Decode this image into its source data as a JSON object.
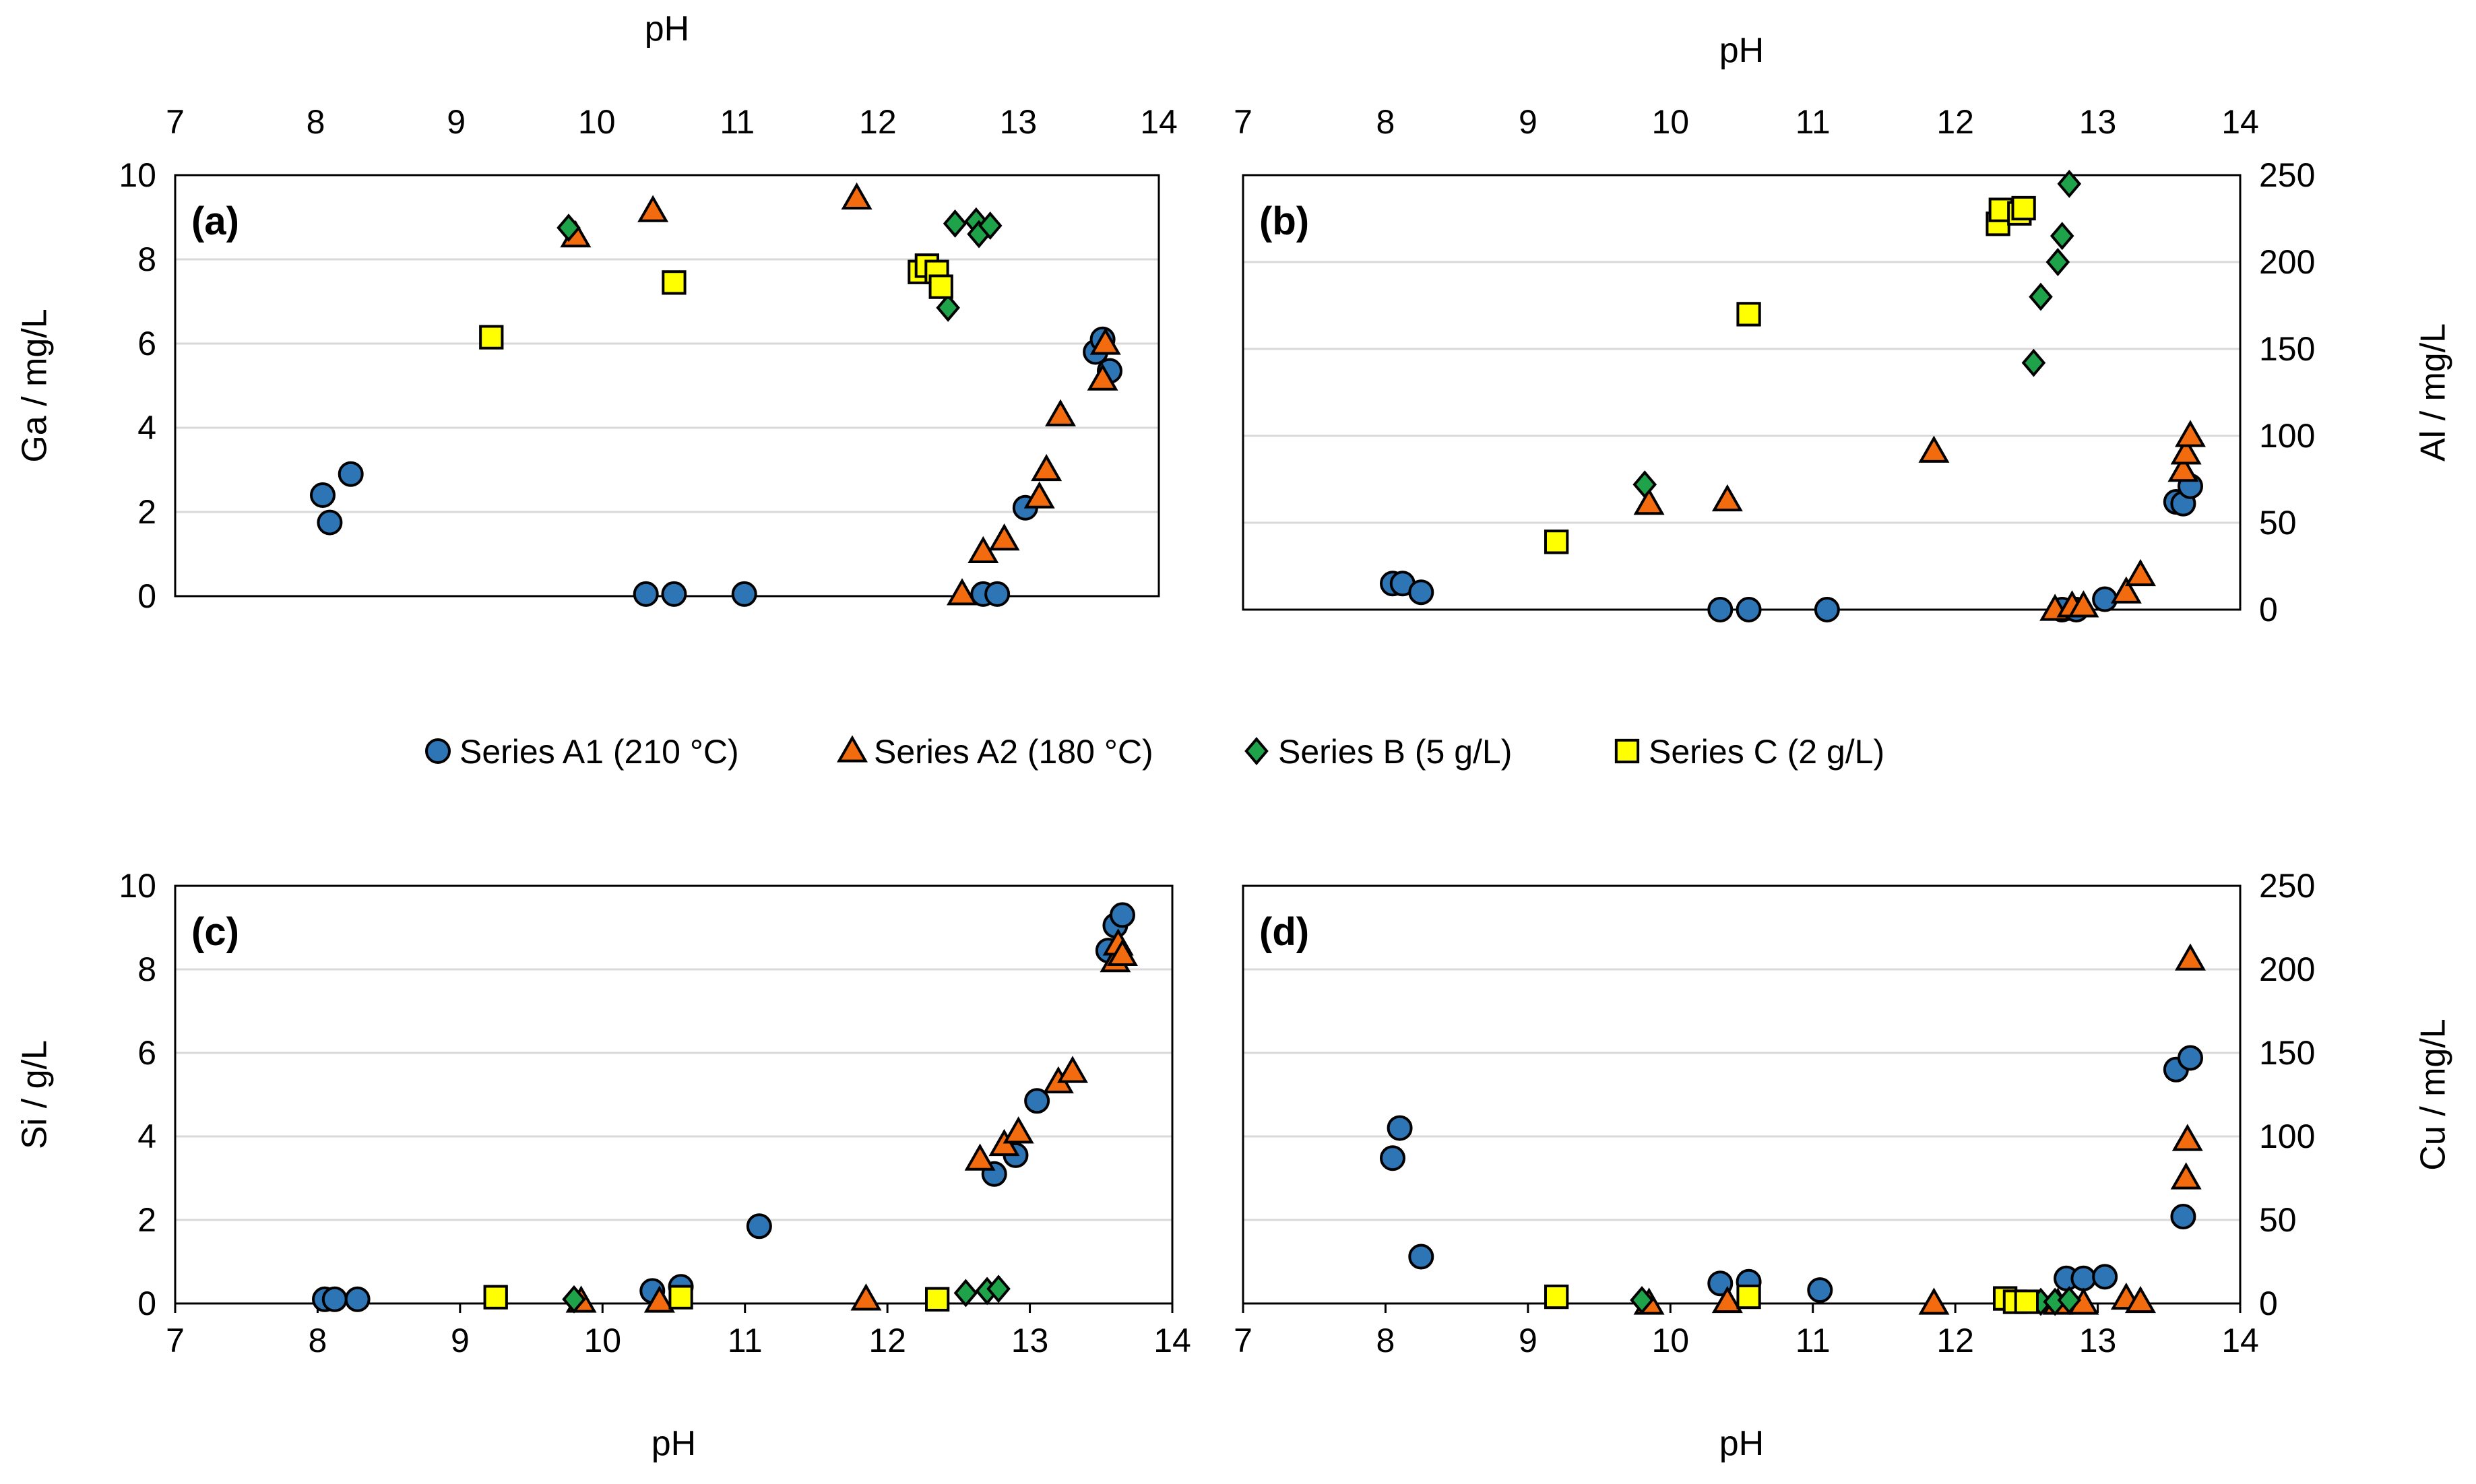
{
  "colors": {
    "A1": "#2e75b6",
    "A2": "#f26b0f",
    "B": "#1fa34a",
    "C": "#ffff00",
    "marker_edge": "#000000",
    "grid": "#d9d9d9"
  },
  "legend": [
    {
      "key": "A1",
      "label": "Series A1 (210 °C)",
      "marker": "circle"
    },
    {
      "key": "A2",
      "label": "Series A2 (180 °C)",
      "marker": "triangle"
    },
    {
      "key": "B",
      "label": "Series B (5 g/L)",
      "marker": "diamond"
    },
    {
      "key": "C",
      "label": "Series C (2 g/L)",
      "marker": "square"
    }
  ],
  "chart_data": [
    {
      "id": "a",
      "type": "scatter",
      "panel_label": "(a)",
      "xlabel": "pH",
      "ylabel": "Ga / mg/L",
      "xlim": [
        7,
        14
      ],
      "ylim": [
        0,
        10
      ],
      "xticks": [
        "7",
        "8",
        "9",
        "10",
        "11",
        "12",
        "13",
        "14"
      ],
      "yticks": [
        "0",
        "2",
        "4",
        "6",
        "8",
        "10"
      ],
      "x_axis_position": "top",
      "y_axis_position": "left",
      "grid": true,
      "series": [
        {
          "key": "A1",
          "name": "Series A1 (210 °C)",
          "points": [
            [
              8.05,
              2.4
            ],
            [
              8.1,
              1.75
            ],
            [
              8.25,
              2.9
            ],
            [
              10.35,
              0.05
            ],
            [
              10.55,
              0.05
            ],
            [
              11.05,
              0.05
            ],
            [
              12.75,
              0.05
            ],
            [
              12.85,
              0.05
            ],
            [
              13.05,
              2.1
            ],
            [
              13.55,
              5.8
            ],
            [
              13.6,
              6.1
            ],
            [
              13.65,
              5.35
            ]
          ]
        },
        {
          "key": "A2",
          "name": "Series A2 (180 °C)",
          "points": [
            [
              9.85,
              8.55
            ],
            [
              10.4,
              9.15
            ],
            [
              11.85,
              9.45
            ],
            [
              12.6,
              0.05
            ],
            [
              12.75,
              1.05
            ],
            [
              12.9,
              1.35
            ],
            [
              13.15,
              2.35
            ],
            [
              13.2,
              3.0
            ],
            [
              13.3,
              4.3
            ],
            [
              13.6,
              5.15
            ],
            [
              13.62,
              6.0
            ]
          ]
        },
        {
          "key": "B",
          "name": "Series B (5 g/L)",
          "points": [
            [
              9.8,
              8.75
            ],
            [
              12.5,
              6.85
            ],
            [
              12.55,
              8.85
            ],
            [
              12.7,
              8.9
            ],
            [
              12.72,
              8.6
            ],
            [
              12.8,
              8.8
            ]
          ]
        },
        {
          "key": "C",
          "name": "Series C (2 g/L)",
          "points": [
            [
              9.25,
              6.15
            ],
            [
              10.55,
              7.45
            ],
            [
              12.3,
              7.7
            ],
            [
              12.35,
              7.85
            ],
            [
              12.42,
              7.7
            ],
            [
              12.45,
              7.35
            ]
          ]
        }
      ]
    },
    {
      "id": "b",
      "type": "scatter",
      "panel_label": "(b)",
      "xlabel": "pH",
      "ylabel": "Al / mg/L",
      "xlim": [
        7,
        14
      ],
      "ylim": [
        0,
        250
      ],
      "xticks": [
        "7",
        "8",
        "9",
        "10",
        "11",
        "12",
        "13",
        "14"
      ],
      "yticks": [
        "0",
        "50",
        "100",
        "150",
        "200",
        "250"
      ],
      "x_axis_position": "top",
      "y_axis_position": "right",
      "grid": true,
      "series": [
        {
          "key": "A1",
          "name": "Series A1 (210 °C)",
          "points": [
            [
              8.05,
              15
            ],
            [
              8.12,
              15
            ],
            [
              8.25,
              10
            ],
            [
              10.35,
              0
            ],
            [
              10.55,
              0
            ],
            [
              11.1,
              0
            ],
            [
              12.75,
              0
            ],
            [
              12.85,
              0
            ],
            [
              13.05,
              6
            ],
            [
              13.55,
              62
            ],
            [
              13.6,
              61
            ],
            [
              13.65,
              71
            ]
          ]
        },
        {
          "key": "A2",
          "name": "Series A2 (180 °C)",
          "points": [
            [
              9.85,
              61
            ],
            [
              10.4,
              63
            ],
            [
              11.85,
              91
            ],
            [
              12.7,
              0
            ],
            [
              12.82,
              2
            ],
            [
              12.9,
              2
            ],
            [
              13.2,
              10
            ],
            [
              13.3,
              20
            ],
            [
              13.6,
              80
            ],
            [
              13.62,
              90
            ],
            [
              13.65,
              100
            ]
          ]
        },
        {
          "key": "B",
          "name": "Series B (5 g/L)",
          "points": [
            [
              9.82,
              72
            ],
            [
              12.55,
              142
            ],
            [
              12.6,
              180
            ],
            [
              12.72,
              200
            ],
            [
              12.75,
              215
            ],
            [
              12.8,
              245
            ]
          ]
        },
        {
          "key": "C",
          "name": "Series C (2 g/L)",
          "points": [
            [
              9.2,
              39
            ],
            [
              10.55,
              170
            ],
            [
              12.3,
              222
            ],
            [
              12.32,
              230
            ],
            [
              12.45,
              228
            ],
            [
              12.48,
              231
            ]
          ]
        }
      ]
    },
    {
      "id": "c",
      "type": "scatter",
      "panel_label": "(c)",
      "xlabel": "pH",
      "ylabel": "Si / g/L",
      "xlim": [
        7,
        14
      ],
      "ylim": [
        0,
        10
      ],
      "xticks": [
        "7",
        "8",
        "9",
        "10",
        "11",
        "12",
        "13",
        "14"
      ],
      "yticks": [
        "0",
        "2",
        "4",
        "6",
        "8",
        "10"
      ],
      "x_axis_position": "bottom",
      "y_axis_position": "left",
      "grid": true,
      "series": [
        {
          "key": "A1",
          "name": "Series A1 (210 °C)",
          "points": [
            [
              8.05,
              0.1
            ],
            [
              8.12,
              0.1
            ],
            [
              8.28,
              0.1
            ],
            [
              10.35,
              0.3
            ],
            [
              10.55,
              0.4
            ],
            [
              11.1,
              1.85
            ],
            [
              12.75,
              3.1
            ],
            [
              12.9,
              3.55
            ],
            [
              13.05,
              4.85
            ],
            [
              13.55,
              8.45
            ],
            [
              13.6,
              9.05
            ],
            [
              13.65,
              9.3
            ]
          ]
        },
        {
          "key": "A2",
          "name": "Series A2 (180 °C)",
          "points": [
            [
              9.85,
              0.05
            ],
            [
              10.4,
              0.05
            ],
            [
              11.85,
              0.1
            ],
            [
              12.65,
              3.45
            ],
            [
              12.82,
              3.8
            ],
            [
              12.92,
              4.1
            ],
            [
              13.2,
              5.3
            ],
            [
              13.3,
              5.55
            ],
            [
              13.6,
              8.2
            ],
            [
              13.62,
              8.6
            ],
            [
              13.65,
              8.35
            ]
          ]
        },
        {
          "key": "B",
          "name": "Series B (5 g/L)",
          "points": [
            [
              9.8,
              0.1
            ],
            [
              12.55,
              0.25
            ],
            [
              12.7,
              0.3
            ],
            [
              12.78,
              0.35
            ]
          ]
        },
        {
          "key": "C",
          "name": "Series C (2 g/L)",
          "points": [
            [
              9.25,
              0.15
            ],
            [
              10.55,
              0.15
            ],
            [
              12.35,
              0.1
            ]
          ]
        }
      ]
    },
    {
      "id": "d",
      "type": "scatter",
      "panel_label": "(d)",
      "xlabel": "pH",
      "ylabel": "Cu / mg/L",
      "xlim": [
        7,
        14
      ],
      "ylim": [
        0,
        250
      ],
      "xticks": [
        "7",
        "8",
        "9",
        "10",
        "11",
        "12",
        "13",
        "14"
      ],
      "yticks": [
        "0",
        "50",
        "100",
        "150",
        "200",
        "250"
      ],
      "x_axis_position": "bottom",
      "y_axis_position": "right",
      "grid": true,
      "series": [
        {
          "key": "A1",
          "name": "Series A1 (210 °C)",
          "points": [
            [
              8.05,
              87
            ],
            [
              8.1,
              105
            ],
            [
              8.25,
              28
            ],
            [
              10.35,
              12
            ],
            [
              10.55,
              13
            ],
            [
              11.05,
              8
            ],
            [
              12.78,
              15
            ],
            [
              12.9,
              15
            ],
            [
              13.05,
              16
            ],
            [
              13.55,
              140
            ],
            [
              13.6,
              52
            ],
            [
              13.65,
              147
            ]
          ]
        },
        {
          "key": "A2",
          "name": "Series A2 (180 °C)",
          "points": [
            [
              9.85,
              0
            ],
            [
              10.4,
              1
            ],
            [
              11.85,
              0
            ],
            [
              12.72,
              0
            ],
            [
              12.9,
              0
            ],
            [
              13.2,
              3
            ],
            [
              13.3,
              1
            ],
            [
              13.62,
              75
            ],
            [
              13.63,
              98
            ],
            [
              13.65,
              206
            ]
          ]
        },
        {
          "key": "B",
          "name": "Series B (5 g/L)",
          "points": [
            [
              9.8,
              2
            ],
            [
              12.6,
              1
            ],
            [
              12.7,
              1
            ],
            [
              12.8,
              2
            ]
          ]
        },
        {
          "key": "C",
          "name": "Series C (2 g/L)",
          "points": [
            [
              9.2,
              4
            ],
            [
              10.55,
              4
            ],
            [
              12.35,
              3
            ],
            [
              12.42,
              1
            ],
            [
              12.5,
              1
            ]
          ]
        }
      ]
    }
  ]
}
